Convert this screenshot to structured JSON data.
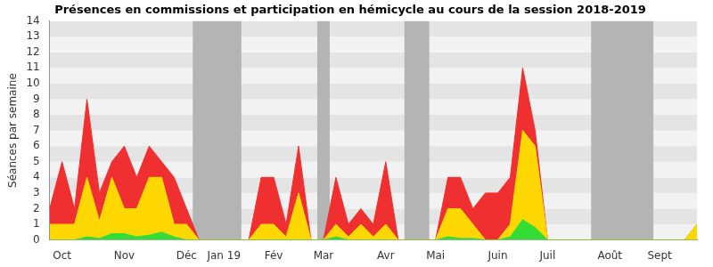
{
  "chart_data": {
    "type": "area",
    "title": "Présences en commissions et participation en hémicycle au cours de la session 2018-2019",
    "y_label": "Séances par semaine",
    "categories": [
      null,
      "Oct",
      null,
      null,
      null,
      null,
      "Nov",
      null,
      null,
      null,
      null,
      "Déc",
      null,
      null,
      "Jan 19",
      null,
      null,
      null,
      "Fév",
      null,
      null,
      null,
      "Mar",
      null,
      null,
      null,
      null,
      "Avr",
      null,
      null,
      null,
      "Mai",
      null,
      null,
      null,
      null,
      "Juin",
      null,
      null,
      null,
      "Juil",
      null,
      null,
      null,
      null,
      "Août",
      null,
      null,
      null,
      "Sept",
      null,
      null,
      null
    ],
    "series": [
      {
        "color": "#33dd33",
        "values": [
          0,
          0,
          0,
          0.2,
          0.1,
          0.4,
          0.4,
          0.2,
          0.3,
          0.5,
          0.2,
          0,
          0,
          0,
          0,
          0,
          0,
          0,
          0,
          0,
          0,
          0,
          0,
          0.2,
          0,
          0,
          0,
          0,
          0,
          0,
          0,
          0,
          0.2,
          0.1,
          0.1,
          0,
          0,
          0.2,
          1.3,
          0.8,
          0,
          0,
          0,
          0,
          0,
          0,
          0,
          0,
          0,
          0,
          0,
          0,
          0
        ]
      },
      {
        "color": "#ffd700",
        "values": [
          1,
          1,
          1,
          3.8,
          1.1,
          3.6,
          1.6,
          1.8,
          3.7,
          3.5,
          0.8,
          1,
          0,
          0,
          0,
          0,
          0,
          1,
          1,
          0.2,
          3,
          0,
          0,
          0.8,
          0.2,
          1,
          0.2,
          1,
          0,
          0,
          0,
          0,
          1.8,
          1.9,
          0.9,
          0,
          0,
          0.8,
          5.7,
          5.2,
          0,
          0,
          0,
          0,
          0,
          0,
          0,
          0,
          0,
          0,
          0,
          0,
          1
        ]
      },
      {
        "color": "#f03030",
        "values": [
          1,
          4,
          1,
          5,
          1.8,
          1,
          4,
          2,
          2,
          1,
          3,
          1,
          0,
          0,
          0,
          0,
          0,
          3,
          3,
          0.8,
          3,
          0,
          0,
          3,
          0.8,
          1,
          0.8,
          4,
          0,
          0,
          0,
          0,
          2,
          2,
          1,
          3,
          3,
          3,
          4,
          1,
          0,
          0,
          0,
          0,
          0,
          0,
          0,
          0,
          0,
          0,
          0,
          0,
          0
        ]
      }
    ],
    "shaded_ranges": [
      [
        11.5,
        15.4
      ],
      [
        21.5,
        22.5
      ],
      [
        28.5,
        30.5
      ],
      [
        43.5,
        48.5
      ]
    ],
    "ylim": [
      0,
      14
    ],
    "yticks": [
      0,
      1,
      2,
      3,
      4,
      5,
      6,
      7,
      8,
      9,
      10,
      11,
      12,
      13,
      14
    ],
    "stacked": true,
    "grid": true
  }
}
